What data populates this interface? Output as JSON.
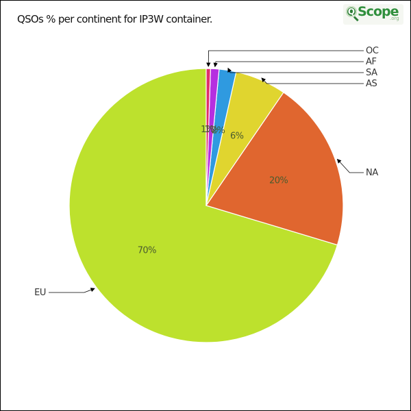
{
  "chart_data": {
    "type": "pie",
    "title": "QSOs % per continent for IP3W container.",
    "slices": [
      {
        "label": "EU",
        "value": 70,
        "pct_label": "70%",
        "color": "#bde12d"
      },
      {
        "label": "NA",
        "value": 20,
        "pct_label": "20%",
        "color": "#e0662f"
      },
      {
        "label": "AS",
        "value": 6,
        "pct_label": "6%",
        "color": "#e0d52f"
      },
      {
        "label": "SA",
        "value": 2,
        "pct_label": "2%",
        "color": "#2f9ae0"
      },
      {
        "label": "AF",
        "value": 1,
        "pct_label": "1%",
        "color": "#b52fe0"
      },
      {
        "label": "OC",
        "value": 0.5,
        "pct_label": "1%",
        "color": "#e02f6b"
      }
    ],
    "grid": false,
    "legend": "labels with leader lines"
  },
  "logo": {
    "mark": "Q",
    "word": "Scope",
    "tld": ".org"
  }
}
